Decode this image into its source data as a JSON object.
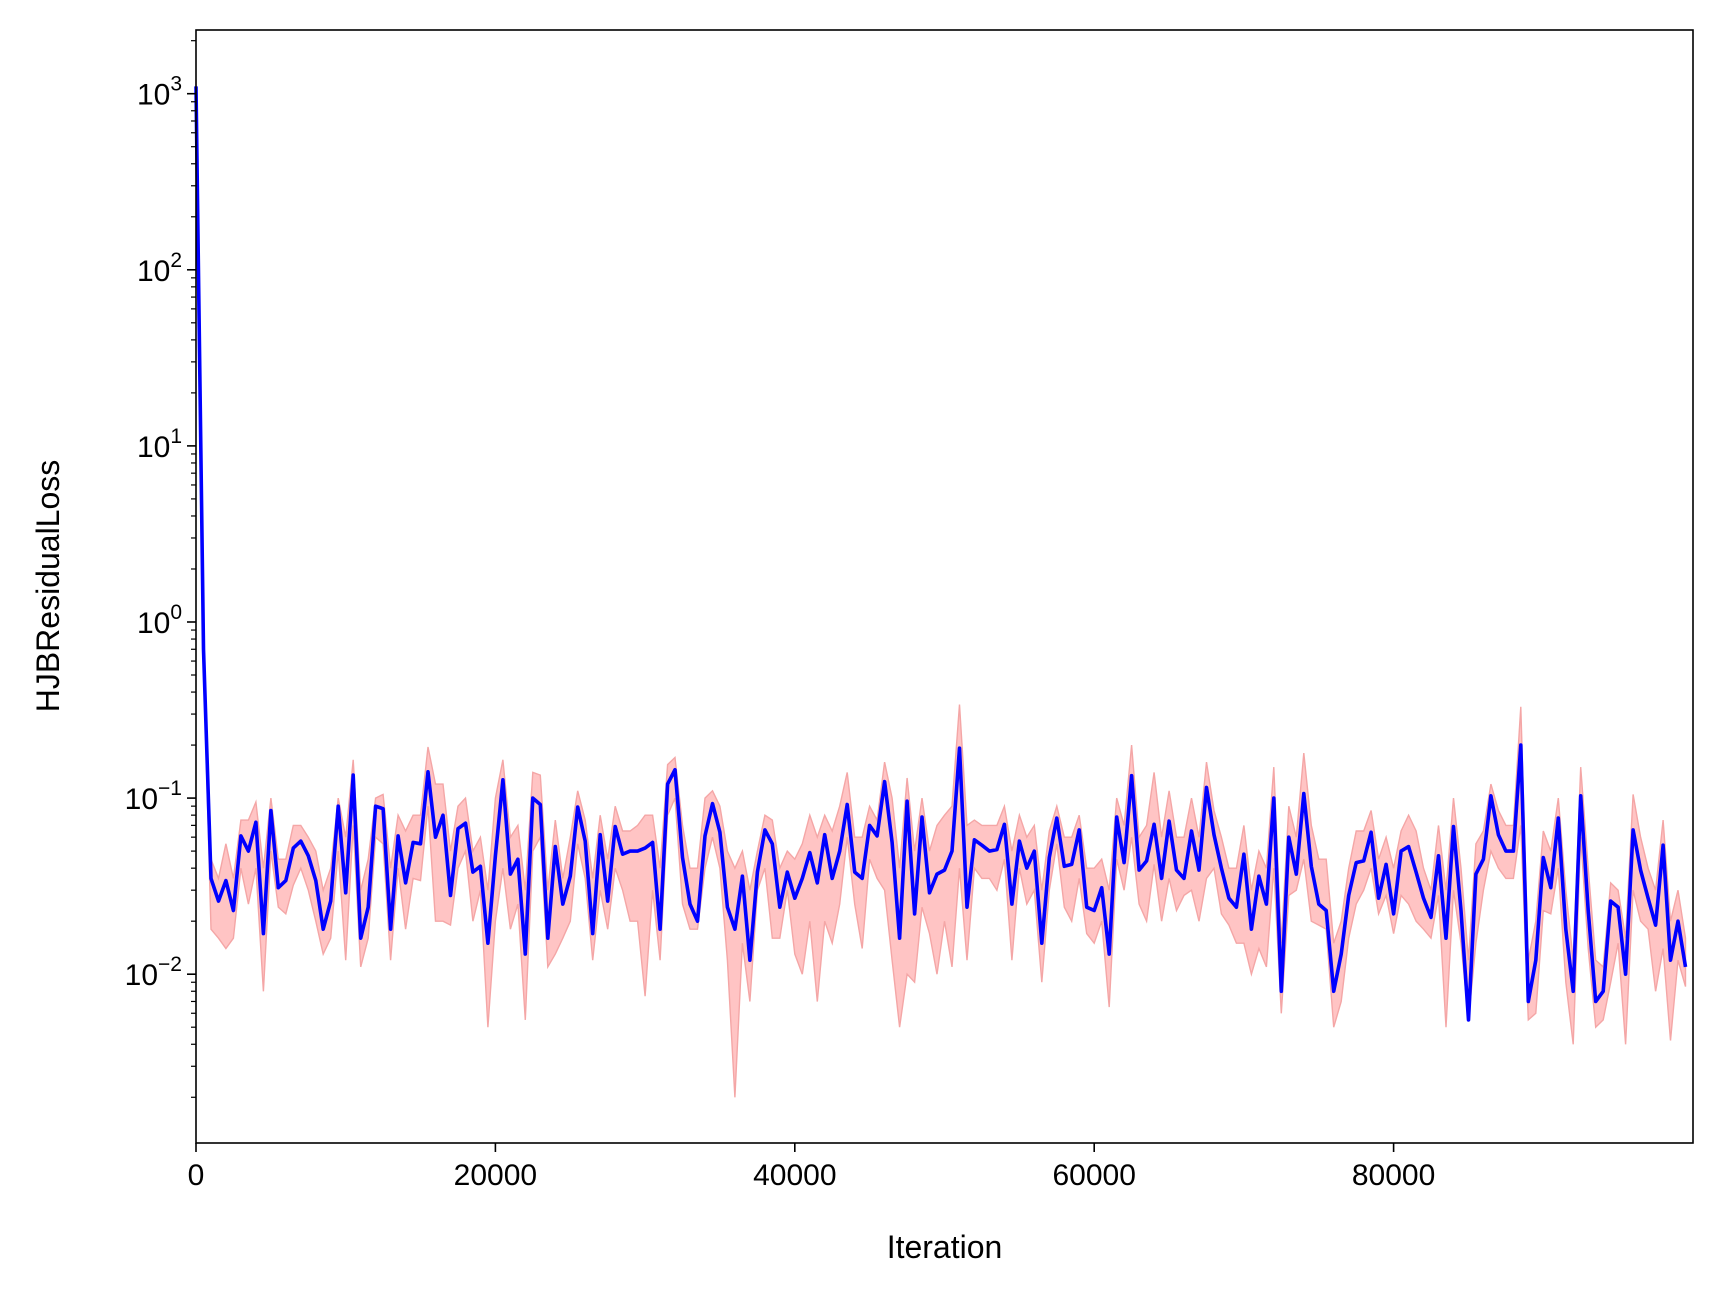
{
  "chart_data": {
    "type": "line",
    "title": "",
    "xlabel": "Iteration",
    "ylabel": "HJBResidualLoss",
    "xlim": [
      0,
      100000
    ],
    "ylim": [
      0.0011,
      2300
    ],
    "yscale": "log",
    "grid": false,
    "legend": "none",
    "x_ticks": [
      0,
      20000,
      40000,
      60000,
      80000
    ],
    "x_tick_labels": [
      "0",
      "20000",
      "40000",
      "60000",
      "80000"
    ],
    "y_ticks": [
      0.01,
      0.1,
      1,
      10,
      100,
      1000
    ],
    "y_tick_labels": [
      {
        "base": "10",
        "exp": "−2"
      },
      {
        "base": "10",
        "exp": "−1"
      },
      {
        "base": "10",
        "exp": "0"
      },
      {
        "base": "10",
        "exp": "1"
      },
      {
        "base": "10",
        "exp": "2"
      },
      {
        "base": "10",
        "exp": "3"
      }
    ],
    "colors": {
      "line": "#0000ff",
      "band_fill": "#ffc4c4",
      "band_edge": "#f4a6a6"
    },
    "series": [
      {
        "color": "#0000ff",
        "x": [
          0,
          500,
          1000,
          1500,
          2000,
          2500,
          3000,
          3500,
          4000,
          4500,
          5000,
          5500,
          6000,
          6500,
          7000,
          7500,
          8000,
          8500,
          9000,
          9500,
          10000,
          10500,
          11000,
          11500,
          12000,
          12500,
          13000,
          13500,
          14000,
          14500,
          15000,
          15500,
          16000,
          16500,
          17000,
          17500,
          18000,
          18500,
          19000,
          19500,
          20000,
          20500,
          21000,
          21500,
          22000,
          22500,
          23000,
          23500,
          24000,
          24500,
          25000,
          25500,
          26000,
          26500,
          27000,
          27500,
          28000,
          28500,
          29000,
          29500,
          30000,
          30500,
          31000,
          31500,
          32000,
          32500,
          33000,
          33500,
          34000,
          34500,
          35000,
          35500,
          36000,
          36500,
          37000,
          37500,
          38000,
          38500,
          39000,
          39500,
          40000,
          40500,
          41000,
          41500,
          42000,
          42500,
          43000,
          43500,
          44000,
          44500,
          45000,
          45500,
          46000,
          46500,
          47000,
          47500,
          48000,
          48500,
          49000,
          49500,
          50000,
          50500,
          51000,
          51500,
          52000,
          52500,
          53000,
          53500,
          54000,
          54500,
          55000,
          55500,
          56000,
          56500,
          57000,
          57500,
          58000,
          58500,
          59000,
          59500,
          60000,
          60500,
          61000,
          61500,
          62000,
          62500,
          63000,
          63500,
          64000,
          64500,
          65000,
          65500,
          66000,
          66500,
          67000,
          67500,
          68000,
          68500,
          69000,
          69500,
          70000,
          70500,
          71000,
          71500,
          72000,
          72500,
          73000,
          73500,
          74000,
          74500,
          75000,
          75500,
          76000,
          76500,
          77000,
          77500,
          78000,
          78500,
          79000,
          79500,
          80000,
          80500,
          81000,
          81500,
          82000,
          82500,
          83000,
          83500,
          84000,
          84500,
          85000,
          85500,
          86000,
          86500,
          87000,
          87500,
          88000,
          88500,
          89000,
          89500,
          90000,
          90500,
          91000,
          91500,
          92000,
          92500,
          93000,
          93500,
          94000,
          94500,
          95000,
          95500,
          96000,
          96500,
          97000,
          97500,
          98000,
          98500,
          99000,
          99500
        ],
        "y": [
          1100,
          0.7,
          0.035,
          0.026,
          0.034,
          0.023,
          0.061,
          0.05,
          0.073,
          0.017,
          0.085,
          0.031,
          0.034,
          0.052,
          0.057,
          0.047,
          0.034,
          0.018,
          0.026,
          0.09,
          0.029,
          0.135,
          0.016,
          0.024,
          0.09,
          0.087,
          0.018,
          0.061,
          0.033,
          0.056,
          0.055,
          0.141,
          0.06,
          0.08,
          0.028,
          0.067,
          0.072,
          0.038,
          0.041,
          0.015,
          0.047,
          0.127,
          0.037,
          0.045,
          0.013,
          0.1,
          0.092,
          0.016,
          0.053,
          0.025,
          0.036,
          0.089,
          0.057,
          0.017,
          0.062,
          0.026,
          0.069,
          0.048,
          0.05,
          0.05,
          0.052,
          0.056,
          0.018,
          0.12,
          0.145,
          0.046,
          0.025,
          0.02,
          0.061,
          0.093,
          0.064,
          0.024,
          0.018,
          0.036,
          0.012,
          0.038,
          0.066,
          0.055,
          0.024,
          0.038,
          0.027,
          0.035,
          0.049,
          0.033,
          0.062,
          0.035,
          0.05,
          0.092,
          0.038,
          0.035,
          0.07,
          0.061,
          0.124,
          0.056,
          0.016,
          0.096,
          0.022,
          0.078,
          0.029,
          0.037,
          0.039,
          0.05,
          0.192,
          0.024,
          0.058,
          0.054,
          0.05,
          0.051,
          0.071,
          0.025,
          0.057,
          0.04,
          0.05,
          0.015,
          0.046,
          0.077,
          0.041,
          0.042,
          0.066,
          0.024,
          0.023,
          0.031,
          0.013,
          0.078,
          0.043,
          0.134,
          0.039,
          0.044,
          0.071,
          0.035,
          0.074,
          0.039,
          0.035,
          0.065,
          0.039,
          0.115,
          0.062,
          0.04,
          0.027,
          0.024,
          0.048,
          0.018,
          0.036,
          0.025,
          0.1,
          0.008,
          0.06,
          0.037,
          0.106,
          0.041,
          0.025,
          0.023,
          0.008,
          0.013,
          0.028,
          0.043,
          0.044,
          0.064,
          0.027,
          0.042,
          0.022,
          0.05,
          0.053,
          0.038,
          0.027,
          0.021,
          0.047,
          0.016,
          0.069,
          0.023,
          0.0055,
          0.037,
          0.045,
          0.103,
          0.062,
          0.05,
          0.05,
          0.2,
          0.007,
          0.012,
          0.046,
          0.031,
          0.077,
          0.018,
          0.008,
          0.103,
          0.023,
          0.007,
          0.008,
          0.026,
          0.024,
          0.01,
          0.066,
          0.039,
          0.027,
          0.019,
          0.054,
          0.012,
          0.02,
          0.011
        ]
      }
    ],
    "band": {
      "x": [
        0,
        500,
        1000,
        1500,
        2000,
        2500,
        3000,
        3500,
        4000,
        4500,
        5000,
        5500,
        6000,
        6500,
        7000,
        7500,
        8000,
        8500,
        9000,
        9500,
        10000,
        10500,
        11000,
        11500,
        12000,
        12500,
        13000,
        13500,
        14000,
        14500,
        15000,
        15500,
        16000,
        16500,
        17000,
        17500,
        18000,
        18500,
        19000,
        19500,
        20000,
        20500,
        21000,
        21500,
        22000,
        22500,
        23000,
        23500,
        24000,
        24500,
        25000,
        25500,
        26000,
        26500,
        27000,
        27500,
        28000,
        28500,
        29000,
        29500,
        30000,
        30500,
        31000,
        31500,
        32000,
        32500,
        33000,
        33500,
        34000,
        34500,
        35000,
        35500,
        36000,
        36500,
        37000,
        37500,
        38000,
        38500,
        39000,
        39500,
        40000,
        40500,
        41000,
        41500,
        42000,
        42500,
        43000,
        43500,
        44000,
        44500,
        45000,
        45500,
        46000,
        46500,
        47000,
        47500,
        48000,
        48500,
        49000,
        49500,
        50000,
        50500,
        51000,
        51500,
        52000,
        52500,
        53000,
        53500,
        54000,
        54500,
        55000,
        55500,
        56000,
        56500,
        57000,
        57500,
        58000,
        58500,
        59000,
        59500,
        60000,
        60500,
        61000,
        61500,
        62000,
        62500,
        63000,
        63500,
        64000,
        64500,
        65000,
        65500,
        66000,
        66500,
        67000,
        67500,
        68000,
        68500,
        69000,
        69500,
        70000,
        70500,
        71000,
        71500,
        72000,
        72500,
        73000,
        73500,
        74000,
        74500,
        75000,
        75500,
        76000,
        76500,
        77000,
        77500,
        78000,
        78500,
        79000,
        79500,
        80000,
        80500,
        81000,
        81500,
        82000,
        82500,
        83000,
        83500,
        84000,
        84500,
        85000,
        85500,
        86000,
        86500,
        87000,
        87500,
        88000,
        88500,
        89000,
        89500,
        90000,
        90500,
        91000,
        91500,
        92000,
        92500,
        93000,
        93500,
        94000,
        94500,
        95000,
        95500,
        96000,
        96500,
        97000,
        97500,
        98000,
        98500,
        99000,
        99500
      ],
      "lower": [
        1000,
        0.6,
        0.018,
        0.016,
        0.014,
        0.016,
        0.04,
        0.025,
        0.04,
        0.008,
        0.05,
        0.024,
        0.022,
        0.032,
        0.04,
        0.03,
        0.02,
        0.013,
        0.016,
        0.05,
        0.012,
        0.07,
        0.011,
        0.016,
        0.06,
        0.055,
        0.012,
        0.04,
        0.018,
        0.035,
        0.034,
        0.09,
        0.02,
        0.02,
        0.019,
        0.04,
        0.05,
        0.02,
        0.03,
        0.005,
        0.02,
        0.04,
        0.018,
        0.025,
        0.0055,
        0.05,
        0.06,
        0.011,
        0.013,
        0.016,
        0.02,
        0.055,
        0.035,
        0.012,
        0.03,
        0.018,
        0.04,
        0.03,
        0.02,
        0.02,
        0.0075,
        0.03,
        0.012,
        0.08,
        0.1,
        0.025,
        0.018,
        0.018,
        0.04,
        0.06,
        0.04,
        0.012,
        0.002,
        0.015,
        0.007,
        0.03,
        0.04,
        0.016,
        0.016,
        0.03,
        0.013,
        0.01,
        0.02,
        0.007,
        0.02,
        0.015,
        0.025,
        0.06,
        0.025,
        0.014,
        0.045,
        0.035,
        0.03,
        0.012,
        0.005,
        0.01,
        0.009,
        0.024,
        0.017,
        0.01,
        0.02,
        0.011,
        0.04,
        0.012,
        0.04,
        0.035,
        0.035,
        0.03,
        0.045,
        0.012,
        0.04,
        0.025,
        0.03,
        0.009,
        0.03,
        0.055,
        0.024,
        0.02,
        0.035,
        0.017,
        0.015,
        0.02,
        0.0065,
        0.045,
        0.03,
        0.06,
        0.025,
        0.02,
        0.042,
        0.02,
        0.035,
        0.023,
        0.028,
        0.03,
        0.02,
        0.035,
        0.04,
        0.022,
        0.019,
        0.015,
        0.015,
        0.01,
        0.014,
        0.011,
        0.04,
        0.006,
        0.028,
        0.03,
        0.045,
        0.02,
        0.019,
        0.018,
        0.005,
        0.007,
        0.016,
        0.025,
        0.03,
        0.04,
        0.022,
        0.028,
        0.017,
        0.028,
        0.025,
        0.02,
        0.018,
        0.016,
        0.028,
        0.005,
        0.03,
        0.015,
        0.0055,
        0.015,
        0.03,
        0.05,
        0.04,
        0.035,
        0.035,
        0.07,
        0.0055,
        0.006,
        0.023,
        0.022,
        0.04,
        0.009,
        0.004,
        0.06,
        0.014,
        0.005,
        0.0055,
        0.009,
        0.015,
        0.004,
        0.03,
        0.02,
        0.018,
        0.008,
        0.014,
        0.0042,
        0.012,
        0.0085
      ],
      "upper": [
        1200,
        0.8,
        0.045,
        0.035,
        0.055,
        0.035,
        0.075,
        0.075,
        0.095,
        0.04,
        0.1,
        0.045,
        0.045,
        0.07,
        0.07,
        0.06,
        0.05,
        0.03,
        0.04,
        0.1,
        0.06,
        0.165,
        0.03,
        0.045,
        0.1,
        0.105,
        0.04,
        0.08,
        0.065,
        0.08,
        0.08,
        0.195,
        0.12,
        0.12,
        0.05,
        0.09,
        0.1,
        0.05,
        0.06,
        0.03,
        0.1,
        0.165,
        0.06,
        0.07,
        0.03,
        0.14,
        0.135,
        0.03,
        0.075,
        0.035,
        0.06,
        0.11,
        0.075,
        0.035,
        0.08,
        0.045,
        0.09,
        0.065,
        0.065,
        0.07,
        0.08,
        0.08,
        0.04,
        0.155,
        0.17,
        0.07,
        0.04,
        0.04,
        0.1,
        0.11,
        0.09,
        0.05,
        0.04,
        0.05,
        0.03,
        0.05,
        0.08,
        0.075,
        0.04,
        0.05,
        0.045,
        0.055,
        0.08,
        0.06,
        0.08,
        0.065,
        0.09,
        0.14,
        0.06,
        0.06,
        0.09,
        0.075,
        0.16,
        0.1,
        0.04,
        0.13,
        0.05,
        0.1,
        0.05,
        0.07,
        0.08,
        0.09,
        0.34,
        0.07,
        0.075,
        0.07,
        0.07,
        0.07,
        0.09,
        0.05,
        0.08,
        0.06,
        0.07,
        0.03,
        0.065,
        0.09,
        0.06,
        0.06,
        0.08,
        0.04,
        0.04,
        0.045,
        0.03,
        0.1,
        0.07,
        0.2,
        0.06,
        0.07,
        0.14,
        0.06,
        0.11,
        0.06,
        0.06,
        0.1,
        0.06,
        0.16,
        0.085,
        0.06,
        0.04,
        0.04,
        0.07,
        0.03,
        0.05,
        0.04,
        0.15,
        0.015,
        0.09,
        0.06,
        0.18,
        0.07,
        0.045,
        0.045,
        0.015,
        0.02,
        0.04,
        0.065,
        0.065,
        0.085,
        0.045,
        0.06,
        0.04,
        0.065,
        0.08,
        0.065,
        0.04,
        0.03,
        0.07,
        0.03,
        0.1,
        0.04,
        0.012,
        0.055,
        0.065,
        0.12,
        0.085,
        0.07,
        0.07,
        0.33,
        0.012,
        0.02,
        0.065,
        0.05,
        0.1,
        0.03,
        0.012,
        0.15,
        0.04,
        0.012,
        0.011,
        0.033,
        0.03,
        0.016,
        0.105,
        0.06,
        0.04,
        0.03,
        0.075,
        0.02,
        0.03,
        0.016
      ]
    }
  }
}
